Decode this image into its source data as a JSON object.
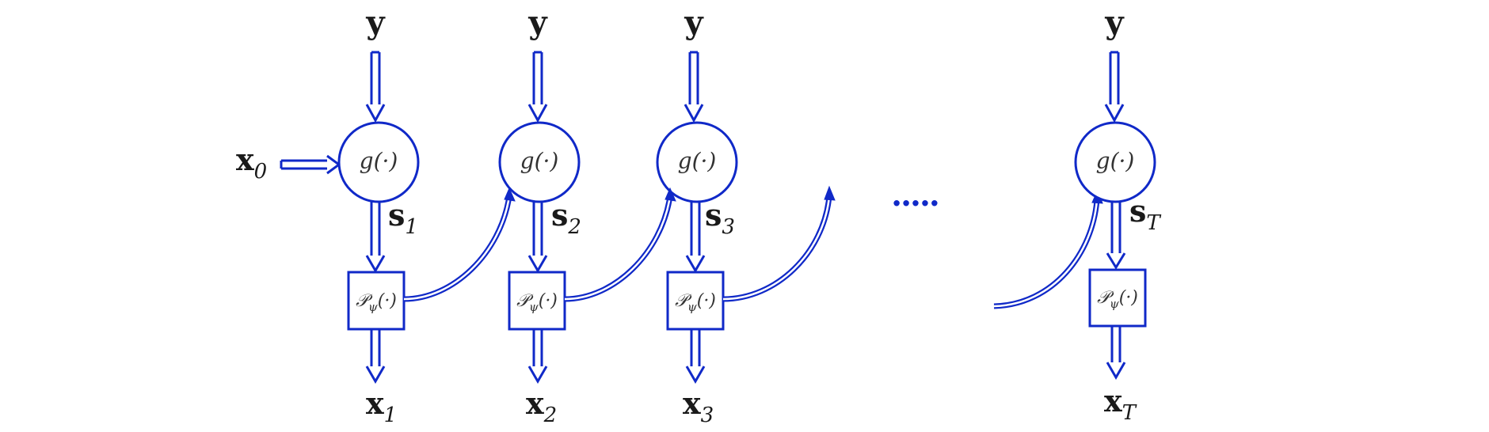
{
  "colors": {
    "stroke": "#1029c8",
    "text": "#1a1a1a"
  },
  "input_label": {
    "main": "x",
    "sub": "0"
  },
  "stages": [
    {
      "top_label": "y",
      "node_label": "g(·)",
      "state": {
        "main": "s",
        "sub": "1"
      },
      "proj_main": "𝒫",
      "proj_sub": "ψ",
      "proj_tail": "(·)",
      "output": {
        "main": "x",
        "sub": "1"
      }
    },
    {
      "top_label": "y",
      "node_label": "g(·)",
      "state": {
        "main": "s",
        "sub": "2"
      },
      "proj_main": "𝒫",
      "proj_sub": "ψ",
      "proj_tail": "(·)",
      "output": {
        "main": "x",
        "sub": "2"
      }
    },
    {
      "top_label": "y",
      "node_label": "g(·)",
      "state": {
        "main": "s",
        "sub": "3"
      },
      "proj_main": "𝒫",
      "proj_sub": "ψ",
      "proj_tail": "(·)",
      "output": {
        "main": "x",
        "sub": "3"
      }
    },
    {
      "top_label": "y",
      "node_label": "g(·)",
      "state": {
        "main": "s",
        "sub": "T"
      },
      "proj_main": "𝒫",
      "proj_sub": "ψ",
      "proj_tail": "(·)",
      "output": {
        "main": "x",
        "sub": "T"
      }
    }
  ],
  "ellipsis": "....."
}
